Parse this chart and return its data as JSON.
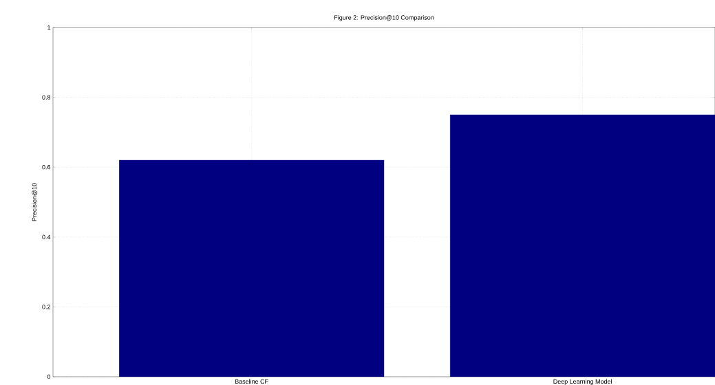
{
  "chart_data": {
    "type": "bar",
    "title": "Figure 2: Precision@10 Comparison",
    "ylabel": "Precision@10",
    "categories": [
      "Baseline CF",
      "Deep Learning Model"
    ],
    "values": [
      0.62,
      0.75
    ],
    "color": "#000080",
    "ylim": [
      0,
      1
    ],
    "yticks": [
      0,
      0.2,
      0.4,
      0.6,
      0.8,
      1
    ],
    "grid": true
  }
}
